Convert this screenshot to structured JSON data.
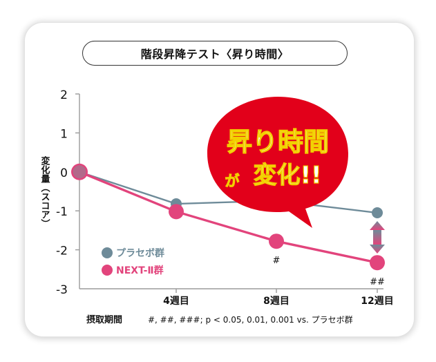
{
  "chart_data": {
    "type": "line",
    "title": "階段昇降テスト〈昇り時間〉",
    "ylabel": "変化量（スコア）",
    "x_caption": "摂取期間",
    "categories": [
      "",
      "4週目",
      "8週目",
      "12週目"
    ],
    "yticks": [
      "2",
      "1",
      "0",
      "-1",
      "-2",
      "-3"
    ],
    "ylim": [
      -3,
      2
    ],
    "series": [
      {
        "name": "プラセボ群",
        "color": "#6e8b99",
        "values": [
          0,
          -0.82,
          -0.74,
          -1.05
        ]
      },
      {
        "name": "NEXT-Ⅱ群",
        "color": "#e2447c",
        "values": [
          0,
          -1.02,
          -1.78,
          -2.33
        ]
      }
    ],
    "significance": [
      {
        "category_index": 2,
        "label": "#"
      },
      {
        "category_index": 3,
        "label": "##"
      }
    ],
    "footnote": "#, ##, ###; p < 0.05, 0.01, 0.001 vs. プラセボ群",
    "callout": {
      "line1": "昇り時間",
      "line2_small": "が",
      "line2_large": "変化!!",
      "bg_color": "#e2001a"
    },
    "legend_position": "bottom-left",
    "grid": false
  }
}
